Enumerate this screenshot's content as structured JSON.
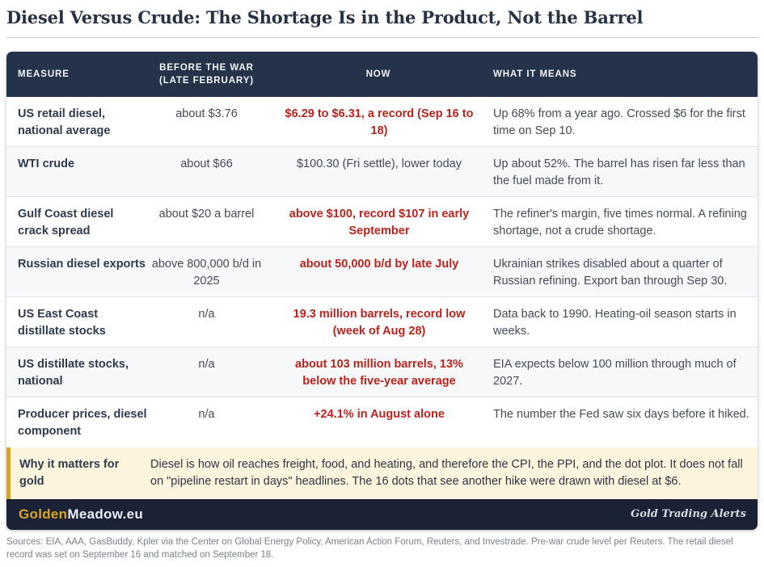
{
  "title": "Diesel Versus Crude: The Shortage Is in the Product, Not the Barrel",
  "columns": [
    "MEASURE",
    "BEFORE THE WAR (LATE FEBRUARY)",
    "NOW",
    "WHAT IT MEANS"
  ],
  "rows": [
    {
      "measure": "US retail diesel, national average",
      "before": "about $3.76",
      "now": "$6.29 to $6.31, a record (Sep 16 to 18)",
      "now_highlight": true,
      "meaning": "Up 68% from a year ago. Crossed $6 for the first time on Sep 10."
    },
    {
      "measure": "WTI crude",
      "before": "about $66",
      "now": "$100.30 (Fri settle), lower today",
      "now_highlight": false,
      "meaning": "Up about 52%. The barrel has risen far less than the fuel made from it."
    },
    {
      "measure": "Gulf Coast diesel crack spread",
      "before": "about $20 a barrel",
      "now": "above $100, record $107 in early September",
      "now_highlight": true,
      "meaning": "The refiner's margin, five times normal. A refining shortage, not a crude shortage."
    },
    {
      "measure": "Russian diesel exports",
      "before": "above 800,000 b/d in 2025",
      "now": "about 50,000 b/d by late July",
      "now_highlight": true,
      "meaning": "Ukrainian strikes disabled about a quarter of Russian refining. Export ban through Sep 30."
    },
    {
      "measure": "US East Coast distillate stocks",
      "before": "n/a",
      "now": "19.3 million barrels, record low (week of Aug 28)",
      "now_highlight": true,
      "meaning": "Data back to 1990. Heating-oil season starts in weeks."
    },
    {
      "measure": "US distillate stocks, national",
      "before": "n/a",
      "now": "about 103 million barrels, 13% below the five-year average",
      "now_highlight": true,
      "meaning": "EIA expects below 100 million through much of 2027."
    },
    {
      "measure": "Producer prices, diesel component",
      "before": "n/a",
      "now": "+24.1% in August alone",
      "now_highlight": true,
      "meaning": "The number the Fed saw six days before it hiked."
    }
  ],
  "why": {
    "label": "Why it matters for gold",
    "text": "Diesel is how oil reaches freight, food, and heating, and therefore the CPI, the PPI, and the dot plot. It does not fall on \"pipeline restart in days\" headlines. The 16 dots that see another hike were drawn with diesel at $6."
  },
  "footer": {
    "brand_part1": "Golden",
    "brand_part2": "Meadow.eu",
    "tagline": "Gold Trading Alerts"
  },
  "sources": "Sources: EIA, AAA, GasBuddy, Kpler via the Center on Global Energy Policy, American Action Forum, Reuters, and Investrade. Pre-war crude level per Reuters. The retail diesel record was set on September 16 and matched on September 18.",
  "colors": {
    "header_bg": "#24324a",
    "highlight_red": "#b8241c",
    "gold_accent": "#d9a527",
    "callout_bg": "#fdf4de",
    "footer_bg": "#1b2236"
  }
}
